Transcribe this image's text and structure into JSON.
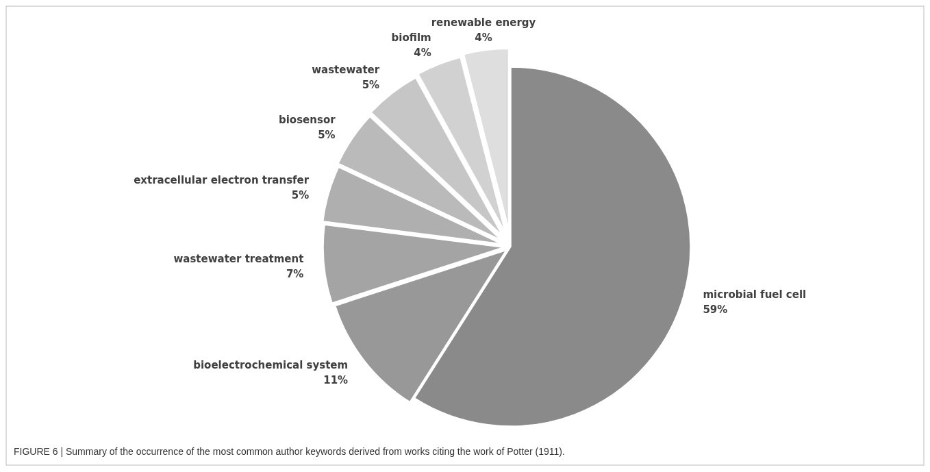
{
  "chart_data": {
    "type": "pie",
    "categories": [
      "microbial fuel cell",
      "bioelectrochemical system",
      "wastewater treatment",
      "extracellular electron transfer",
      "biosensor",
      "wastewater",
      "biofilm",
      "renewable energy"
    ],
    "values": [
      59,
      11,
      7,
      5,
      5,
      5,
      4,
      4
    ],
    "value_labels": [
      "59%",
      "11%",
      "7%",
      "5%",
      "5%",
      "5%",
      "4%",
      "4%"
    ],
    "colors": [
      "#8a8a8a",
      "#989898",
      "#a4a4a4",
      "#afafaf",
      "#bababa",
      "#c6c6c6",
      "#d1d1d1",
      "#dedede"
    ],
    "annotations": [
      "FIGURE 6 | Summary of the occurrence of the most common author keywords derived from works citing the work of Potter (1911)."
    ]
  }
}
